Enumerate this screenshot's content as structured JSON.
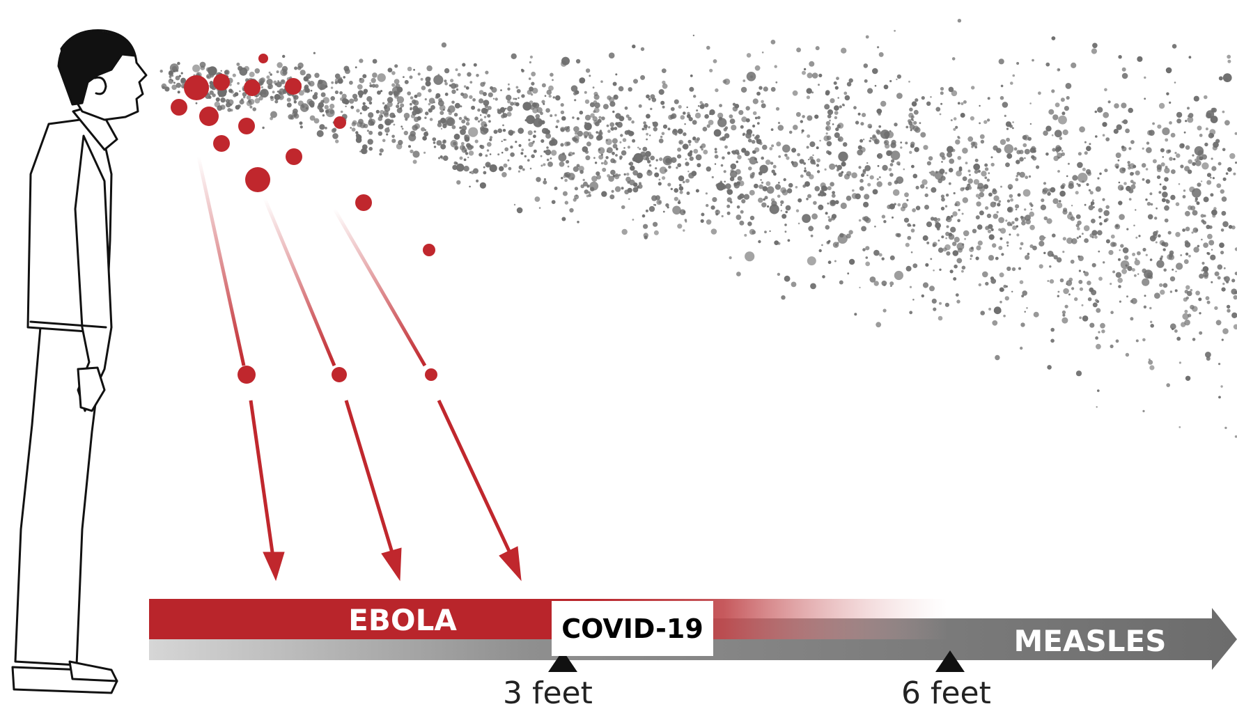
{
  "labels": {
    "ebola": "EBOLA",
    "covid": "COVID-19",
    "measles": "MEASLES",
    "three_feet": "3 feet",
    "six_feet": "6 feet"
  },
  "colors": {
    "droplet_red": "#c0272d",
    "aerosol_gray": "#6e6e6e",
    "bar_red": "#b9252b",
    "bar_gray": "#7a7a7a",
    "line": "#111111"
  },
  "icons": {
    "person": "standing-man-illustration",
    "arrow": "downward-red-arrow",
    "marker": "triangle-marker"
  }
}
